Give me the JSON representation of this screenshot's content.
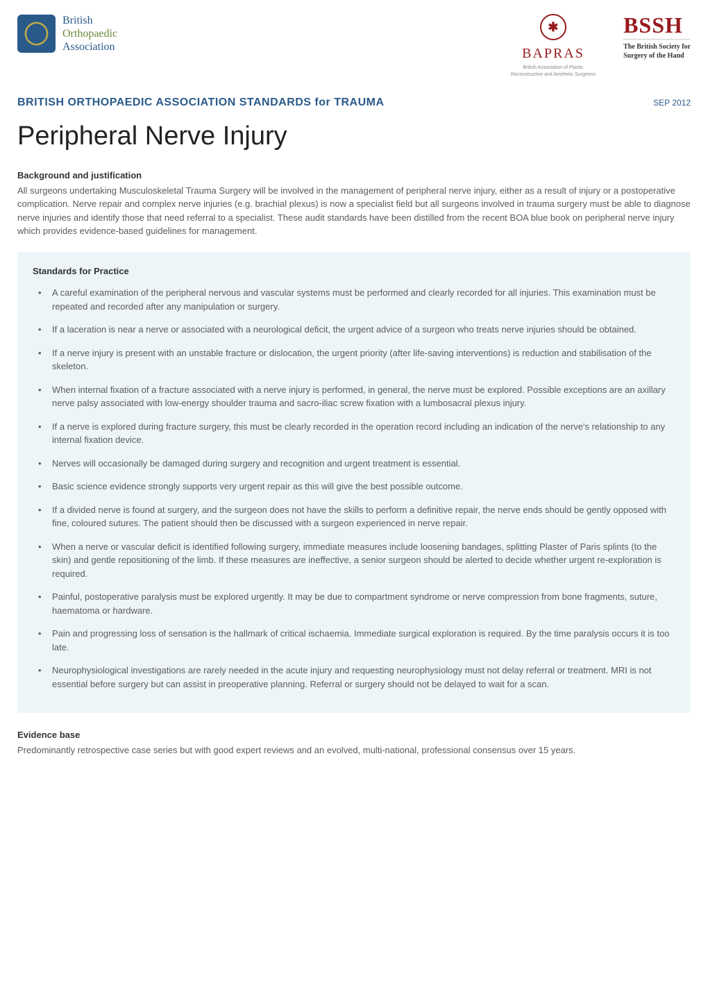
{
  "colors": {
    "brand_blue": "#2a5a8a",
    "brand_green": "#6a8a3a",
    "brand_red": "#971b1e",
    "body_text": "#5a5a5a",
    "heading_text": "#333333",
    "box_bg": "#eef5f8",
    "page_bg": "#ffffff"
  },
  "typography": {
    "body_fontsize_pt": 10,
    "title_fontsize_pt": 29,
    "subtitle_fontsize_pt": 12,
    "section_heading_fontsize_pt": 10,
    "body_font": "Segoe UI / Arial sans-serif",
    "title_font": "Segoe UI Light",
    "serif_font": "Georgia"
  },
  "logos": {
    "left": {
      "line1": "British",
      "line2": "Orthopaedic",
      "line3": "Association"
    },
    "bapras": {
      "glyph": "✱",
      "name": "BAPRAS",
      "sub1": "British Association of Plastic",
      "sub2": "Reconstructive and Aesthetic Surgeons"
    },
    "bssh": {
      "name": "BSSH",
      "sub1": "The British Society for",
      "sub2": "Surgery of the Hand"
    }
  },
  "header": {
    "subtitle": "BRITISH ORTHOPAEDIC ASSOCIATION STANDARDS for TRAUMA",
    "date": "SEP 2012"
  },
  "title": "Peripheral Nerve Injury",
  "background": {
    "heading": "Background and justification",
    "body": "All surgeons undertaking Musculoskeletal Trauma Surgery will be involved in the management of peripheral nerve injury, either as a result of injury or a postoperative complication. Nerve repair and complex nerve injuries (e.g. brachial plexus) is now a specialist field but all surgeons involved in trauma surgery must be able to diagnose nerve injuries and identify those that need referral to a specialist. These audit standards have been distilled from the recent BOA blue book on peripheral nerve injury which provides evidence-based guidelines for management."
  },
  "standards": {
    "heading": "Standards for Practice",
    "items": [
      "A careful examination of the peripheral nervous and vascular systems must be performed and clearly recorded for all injuries. This examination must be repeated and recorded after any manipulation or surgery.",
      "If a laceration is near a nerve or associated with a neurological deficit, the urgent advice of a surgeon who treats nerve injuries should be obtained.",
      "If a nerve injury is present with an unstable fracture or dislocation, the urgent priority (after life-saving interventions) is reduction and stabilisation of the skeleton.",
      "When internal fixation of a fracture associated with a nerve injury is performed, in general, the nerve must be explored. Possible exceptions are an axillary nerve palsy associated with low-energy shoulder trauma and sacro-iliac screw fixation with a lumbosacral plexus injury.",
      "If a nerve is explored during fracture surgery, this must be clearly recorded in the operation record including an indication of the nerve's relationship to any internal fixation device.",
      "Nerves will occasionally be damaged during surgery and recognition and urgent treatment is essential.",
      "Basic science evidence strongly supports very urgent repair as this will give the best possible outcome.",
      "If a divided nerve is found at surgery, and the surgeon does not have the skills to perform a definitive repair, the nerve ends should be gently opposed with fine, coloured sutures. The patient should then be discussed with a surgeon experienced in nerve repair.",
      "When a nerve or vascular deficit is identified following surgery, immediate measures include loosening bandages, splitting Plaster of Paris splints (to the skin) and gentle repositioning of the limb. If these measures are ineffective, a senior surgeon should be alerted to decide whether urgent re-exploration is required.",
      "Painful, postoperative paralysis must be explored urgently. It may be due to compartment syndrome or nerve compression from bone fragments, suture, haematoma or hardware.",
      "Pain and progressing loss of sensation is the hallmark of critical ischaemia. Immediate surgical exploration is required. By the time paralysis occurs it is too late.",
      "Neurophysiological investigations are rarely needed in the acute injury and requesting neurophysiology must not delay referral or treatment. MRI is not essential before surgery but can assist in preoperative planning. Referral or surgery should not be delayed to wait for a scan."
    ]
  },
  "evidence": {
    "heading": "Evidence base",
    "body": "Predominantly retrospective case series but with good expert reviews and an evolved, multi-national, professional consensus over 15 years."
  }
}
